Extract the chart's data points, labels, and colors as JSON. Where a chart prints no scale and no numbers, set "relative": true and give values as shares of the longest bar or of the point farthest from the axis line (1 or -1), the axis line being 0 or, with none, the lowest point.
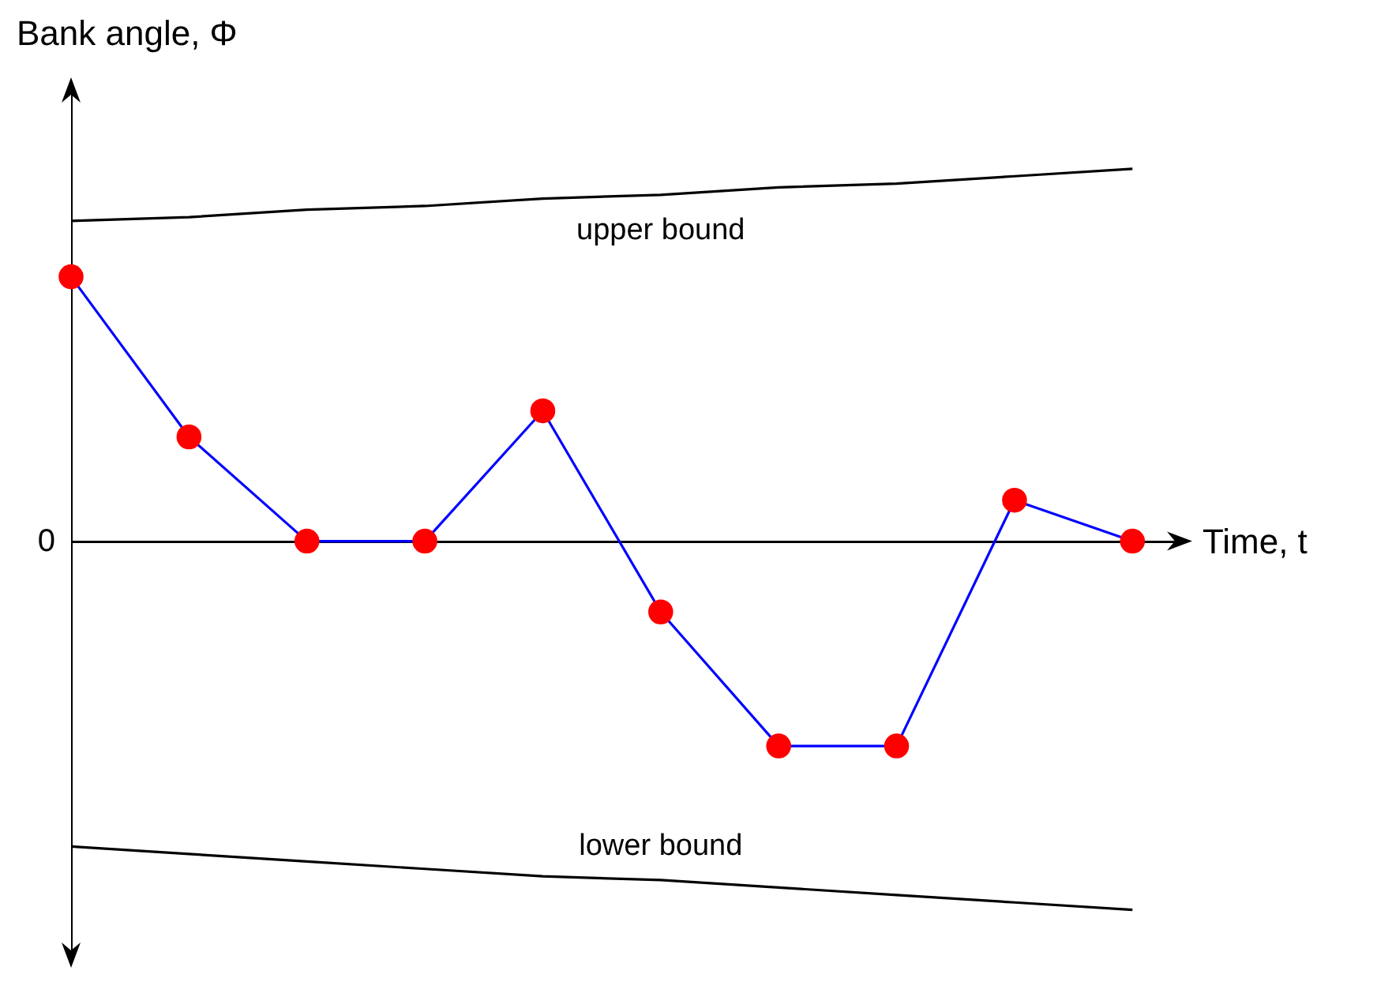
{
  "chart_data": {
    "type": "line",
    "relative": true,
    "xlabel": "Time, t",
    "ylabel": "Bank angle, Φ",
    "categories": [
      null,
      null,
      null,
      null,
      null,
      null,
      null,
      null,
      null,
      null
    ],
    "series": [
      {
        "name": "upper bound",
        "color": "#000000",
        "marker": "none",
        "values": [
          0.86,
          0.87,
          0.89,
          0.9,
          0.92,
          0.93,
          0.95,
          0.96,
          0.98,
          1
        ]
      },
      {
        "name": "lower bound",
        "color": "#000000",
        "marker": "none",
        "values": [
          -0.82,
          -0.84,
          -0.86,
          -0.88,
          -0.9,
          -0.91,
          -0.93,
          -0.95,
          -0.97,
          -0.99
        ]
      },
      {
        "color": "#0000ff",
        "values": [
          0.71,
          0.28,
          0,
          0,
          0.35,
          -0.19,
          -0.55,
          -0.55,
          0.11,
          0
        ]
      }
    ],
    "annotations": [
      "0"
    ],
    "marker": "circle",
    "line_style": "solid"
  }
}
